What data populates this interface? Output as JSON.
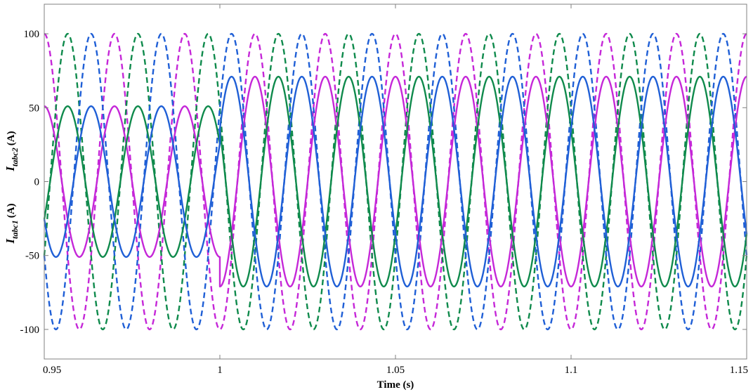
{
  "chart_data": {
    "type": "line",
    "xlabel": "Time (s)",
    "ylabel_upper": {
      "main": "I",
      "sub": "tabc2",
      "unit": "(A)"
    },
    "ylabel_lower": {
      "main": "I",
      "sub": "tabc1",
      "unit": "(A)"
    },
    "xlim": [
      0.95,
      1.15
    ],
    "ylim": [
      -120,
      120
    ],
    "x_ticks": [
      0.95,
      1,
      1.05,
      1.1,
      1.15
    ],
    "x_tick_labels": [
      "0.95",
      "1",
      "1.05",
      "1.1",
      "1.15"
    ],
    "y_ticks": [
      -100,
      -50,
      0,
      50,
      100
    ],
    "y_tick_labels": [
      "-100",
      "-50",
      "0",
      "50",
      "100"
    ],
    "frequency_hz": 50,
    "step_time": 1.0,
    "series": [
      {
        "group": "Itabc2",
        "phase": "a",
        "style": "dashed",
        "color": "#c527d8",
        "amplitude": 100,
        "phase_offset_deg": -90
      },
      {
        "group": "Itabc2",
        "phase": "b",
        "style": "dashed",
        "color": "#0f8a4c",
        "amplitude": 100,
        "phase_offset_deg": 150
      },
      {
        "group": "Itabc2",
        "phase": "c",
        "style": "dashed",
        "color": "#1f5fd6",
        "amplitude": 100,
        "phase_offset_deg": 30
      },
      {
        "group": "Itabc1",
        "phase": "a",
        "style": "solid",
        "color": "#c527d8",
        "amplitude_before": 51,
        "amplitude_after": 71,
        "phase_offset_deg": -90
      },
      {
        "group": "Itabc1",
        "phase": "b",
        "style": "solid",
        "color": "#0f8a4c",
        "amplitude_before": 51,
        "amplitude_after": 71,
        "phase_offset_deg": 150
      },
      {
        "group": "Itabc1",
        "phase": "c",
        "style": "solid",
        "color": "#1f5fd6",
        "amplitude_before": 51,
        "amplitude_after": 71,
        "phase_offset_deg": 30
      }
    ]
  }
}
